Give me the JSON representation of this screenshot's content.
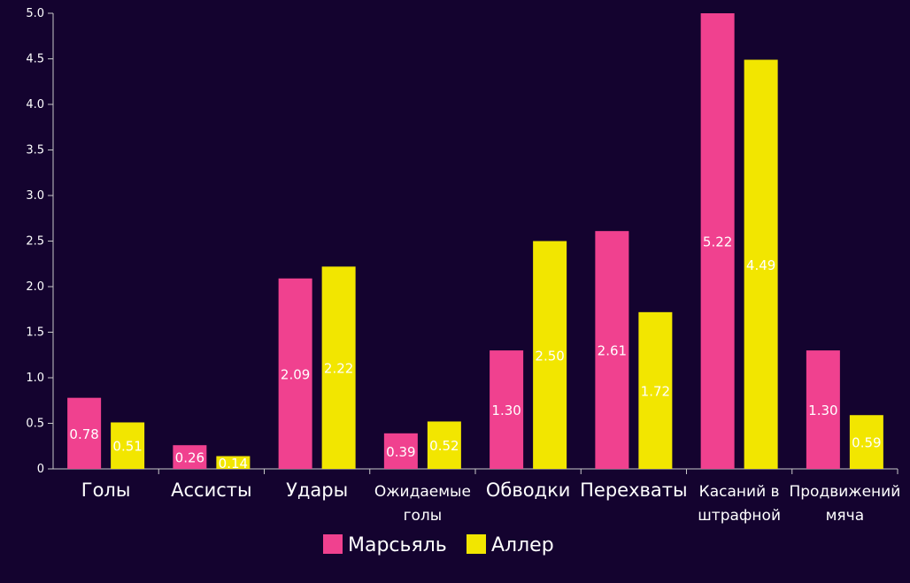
{
  "chart_data": {
    "type": "bar",
    "categories": [
      "Голы",
      "Ассисты",
      "Удары",
      "Ожидаемые голы",
      "Обводки",
      "Перехваты",
      "Касаний в штрафной",
      "Продвижений мяча"
    ],
    "category_lines": [
      [
        "Голы"
      ],
      [
        "Ассисты"
      ],
      [
        "Удары"
      ],
      [
        "Ожидаемые",
        "голы"
      ],
      [
        "Обводки"
      ],
      [
        "Перехваты"
      ],
      [
        "Касаний в",
        "штрафной"
      ],
      [
        "Продвижений",
        "мяча"
      ]
    ],
    "series": [
      {
        "name": "Марсьяль",
        "color": "#f0418f",
        "values": [
          0.78,
          0.26,
          2.09,
          0.39,
          1.3,
          2.61,
          5.22,
          1.3
        ],
        "labels": [
          "0.78",
          "0.26",
          "2.09",
          "0.39",
          "1.30",
          "2.61",
          "5.22",
          "1.30"
        ]
      },
      {
        "name": "Аллер",
        "color": "#f2e600",
        "values": [
          0.51,
          0.14,
          2.22,
          0.52,
          2.5,
          1.72,
          4.49,
          0.59
        ],
        "labels": [
          "0.51",
          "0.14",
          "2.22",
          "0.52",
          "2.50",
          "1.72",
          "4.49",
          "0.59"
        ]
      }
    ],
    "ylim": [
      0,
      5.0
    ],
    "yticks": [
      "0",
      "0.5",
      "1.0",
      "1.5",
      "2.0",
      "2.5",
      "3.0",
      "3.5",
      "4.0",
      "4.5",
      "5.0"
    ],
    "xlabel": "",
    "ylabel": "",
    "title": "",
    "grid": false,
    "legend": "bottom-center",
    "background": "#14032f"
  }
}
